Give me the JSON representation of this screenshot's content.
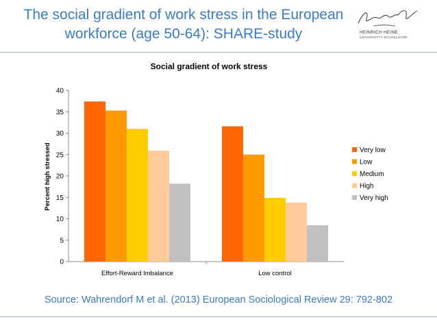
{
  "slide": {
    "title_line1": "The social gradient of work stress in the European",
    "title_line2": "workforce (age 50-64): SHARE-study",
    "source": "Source: Wahrendorf M et al. (2013) European Sociological Review 29: 792-802"
  },
  "logo": {
    "name_line1": "HEINRICH HEINE",
    "name_line2": "UNIVERSITÄT DÜSSELDORF"
  },
  "chart_data": {
    "type": "bar",
    "title": "Social gradient of work stress",
    "ylabel": "Percent high stressed",
    "xlabel": "",
    "ylim": [
      0,
      40
    ],
    "yticks": [
      0,
      5,
      10,
      15,
      20,
      25,
      30,
      35,
      40
    ],
    "categories": [
      "Effort-Reward Imbalance",
      "Low control"
    ],
    "series": [
      {
        "name": "Very low",
        "color": "#ff6600",
        "values": [
          37.4,
          31.6
        ]
      },
      {
        "name": "Low",
        "color": "#ff9900",
        "values": [
          35.3,
          25.0
        ]
      },
      {
        "name": "Medium",
        "color": "#ffcc00",
        "values": [
          31.0,
          14.9
        ]
      },
      {
        "name": "High",
        "color": "#ffcc99",
        "values": [
          25.9,
          13.8
        ]
      },
      {
        "name": "Very high",
        "color": "#c0c0c0",
        "values": [
          18.2,
          8.5
        ]
      }
    ],
    "legend_position": "right",
    "grid": false
  }
}
